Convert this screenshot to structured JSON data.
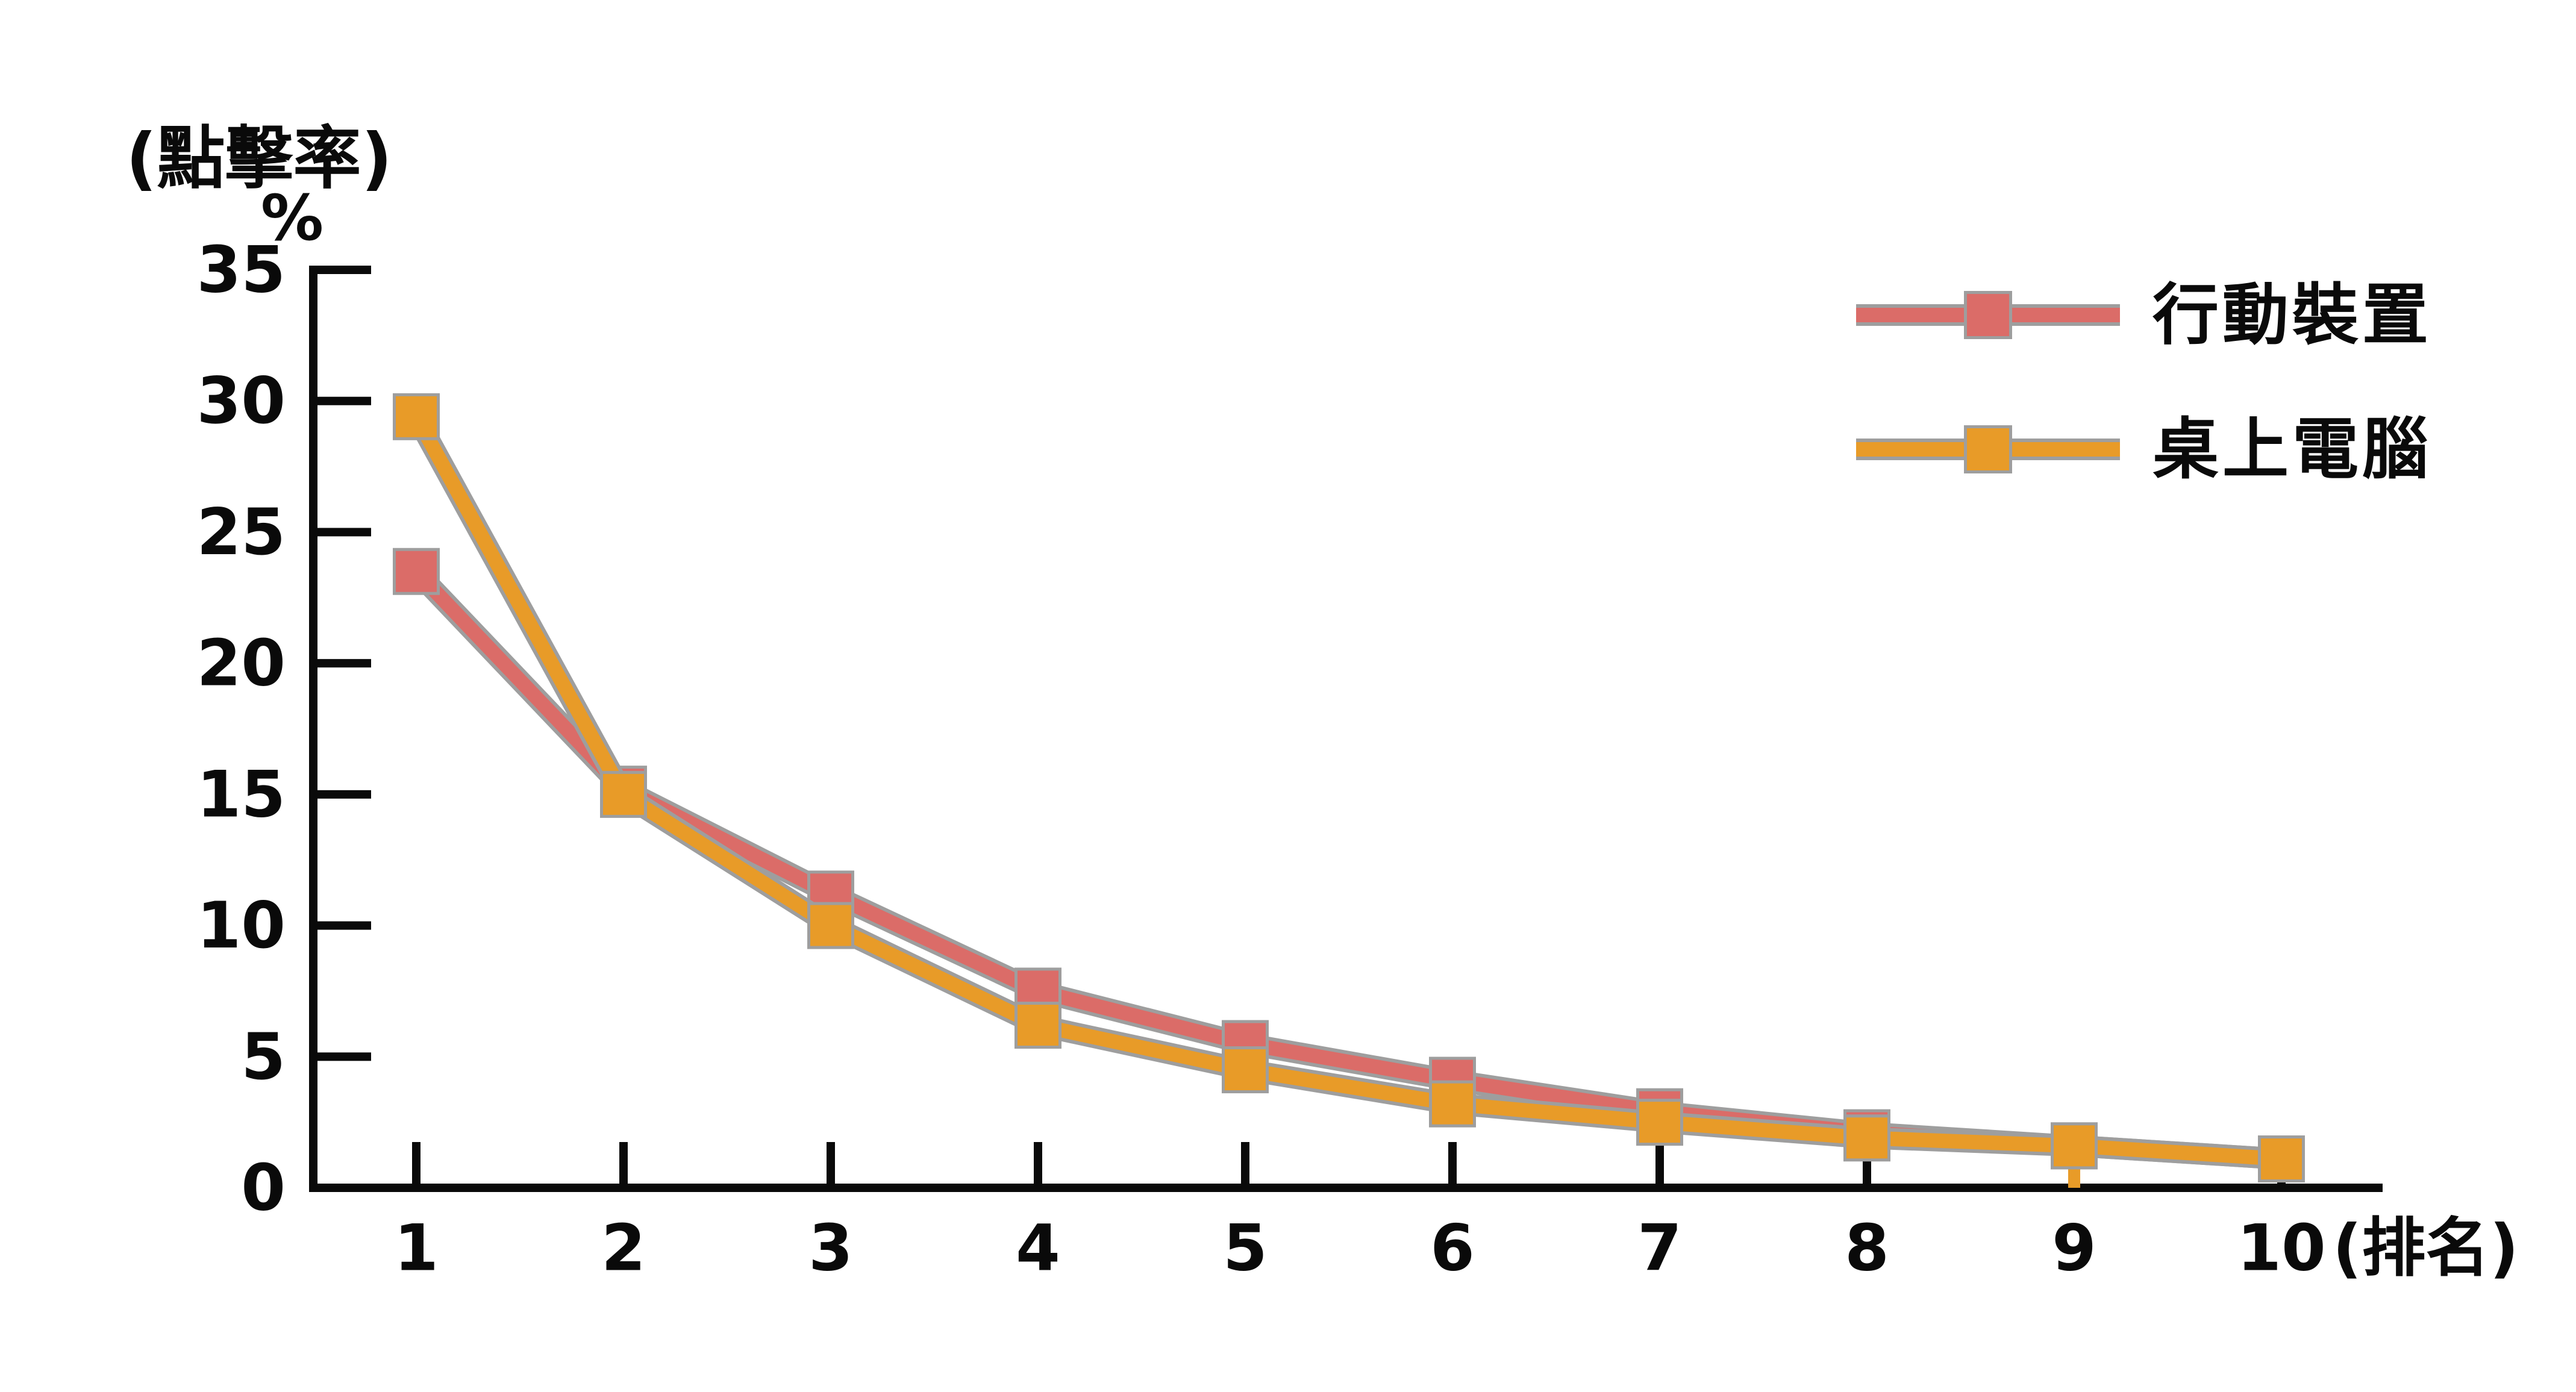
{
  "chart_data": {
    "type": "line",
    "title": "",
    "ylabel_line1": "(點擊率)",
    "ylabel_line2": "%",
    "xlabel": "(排名)",
    "categories": [
      1,
      2,
      3,
      4,
      5,
      6,
      7,
      8,
      9,
      10
    ],
    "ylim": [
      0,
      35
    ],
    "yticks": [
      0,
      5,
      10,
      15,
      20,
      25,
      30,
      35
    ],
    "grid": "off",
    "legend_position": "top-right",
    "marker_shape": "square",
    "series": [
      {
        "name": "行動裝置",
        "color": "#db6c68",
        "values": [
          23.5,
          15.2,
          11.2,
          7.5,
          5.5,
          4.1,
          2.9,
          2.1,
          1.6,
          1.1
        ]
      },
      {
        "name": "桌上電腦",
        "color": "#e89b28",
        "values": [
          29.4,
          15.0,
          10.0,
          6.2,
          4.5,
          3.2,
          2.5,
          1.9,
          1.6,
          1.1
        ],
        "dropline_rank": 9
      }
    ],
    "colors": {
      "axis": "#0a0a0a",
      "tick_label": "#0a0a0a",
      "series_outline": "#9e9e9e",
      "background": "#ffffff"
    }
  }
}
